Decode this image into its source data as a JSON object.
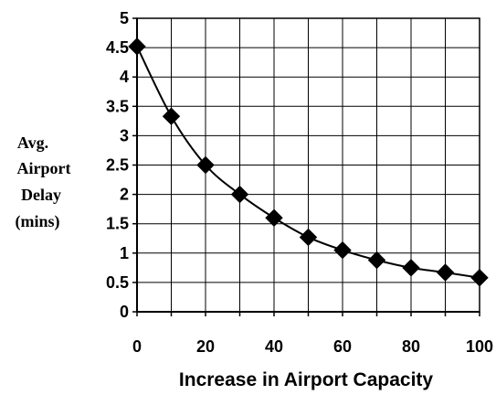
{
  "chart_data": {
    "type": "line",
    "title": "",
    "xlabel": "Increase in Airport Capacity",
    "ylabel_lines": [
      "Avg.",
      "Airport",
      "Delay",
      "(mins)"
    ],
    "xlim": [
      0,
      100
    ],
    "ylim": [
      0,
      5
    ],
    "x_ticks": [
      "0",
      "20",
      "40",
      "60",
      "80",
      "100"
    ],
    "y_ticks": [
      "0",
      "0.5",
      "1",
      "1.5",
      "2",
      "2.5",
      "3",
      "3.5",
      "4",
      "4.5",
      "5"
    ],
    "grid": true,
    "legend": "none",
    "marker": "diamond",
    "line_color": "#000000",
    "series": [
      {
        "x": [
          0,
          10,
          20,
          30,
          40,
          50,
          60,
          70,
          80,
          90,
          100
        ],
        "y": [
          4.52,
          3.33,
          2.5,
          2.0,
          1.6,
          1.27,
          1.05,
          0.88,
          0.75,
          0.67,
          0.58
        ]
      }
    ]
  }
}
